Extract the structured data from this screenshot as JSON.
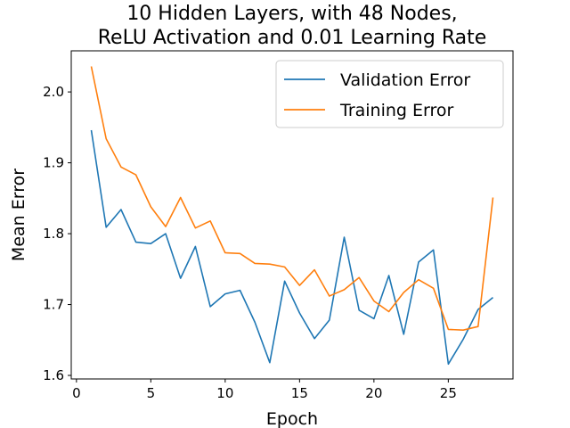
{
  "chart_data": {
    "type": "line",
    "title_lines": [
      "10 Hidden Layers, with 48 Nodes,",
      "ReLU Activation and 0.01 Learning Rate"
    ],
    "xlabel": "Epoch",
    "ylabel": "Mean Error",
    "xlim": [
      -0.35,
      29.35
    ],
    "ylim": [
      1.595,
      2.058
    ],
    "xticks": [
      0,
      5,
      10,
      15,
      20,
      25
    ],
    "yticks": [
      1.6,
      1.7,
      1.8,
      1.9,
      2.0
    ],
    "ytick_labels": [
      "1.6",
      "1.7",
      "1.8",
      "1.9",
      "2.0"
    ],
    "grid": false,
    "legend_position": "top-right",
    "x": [
      1,
      2,
      3,
      4,
      5,
      6,
      7,
      8,
      9,
      10,
      11,
      12,
      13,
      14,
      15,
      16,
      17,
      18,
      19,
      20,
      21,
      22,
      23,
      24,
      25,
      26,
      27,
      28
    ],
    "series": [
      {
        "name": "Validation Error",
        "color": "#1f77b4",
        "values": [
          1.946,
          1.809,
          1.834,
          1.788,
          1.786,
          1.8,
          1.737,
          1.782,
          1.697,
          1.715,
          1.72,
          1.675,
          1.618,
          1.733,
          1.688,
          1.652,
          1.678,
          1.795,
          1.692,
          1.68,
          1.741,
          1.658,
          1.76,
          1.777,
          1.616,
          1.651,
          1.693,
          1.71
        ]
      },
      {
        "name": "Training Error",
        "color": "#ff7f0e",
        "values": [
          2.036,
          1.934,
          1.894,
          1.883,
          1.838,
          1.81,
          1.851,
          1.808,
          1.818,
          1.773,
          1.772,
          1.758,
          1.757,
          1.753,
          1.727,
          1.749,
          1.712,
          1.721,
          1.738,
          1.705,
          1.69,
          1.717,
          1.735,
          1.723,
          1.665,
          1.664,
          1.669,
          1.851
        ]
      }
    ]
  }
}
